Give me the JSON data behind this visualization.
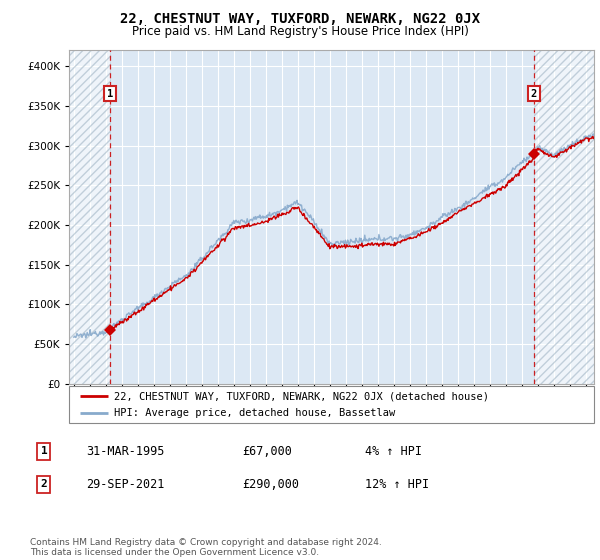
{
  "title": "22, CHESTNUT WAY, TUXFORD, NEWARK, NG22 0JX",
  "subtitle": "Price paid vs. HM Land Registry's House Price Index (HPI)",
  "legend_label1": "22, CHESTNUT WAY, TUXFORD, NEWARK, NG22 0JX (detached house)",
  "legend_label2": "HPI: Average price, detached house, Bassetlaw",
  "sale1_date": "31-MAR-1995",
  "sale1_price": "£67,000",
  "sale1_hpi": "4% ↑ HPI",
  "sale2_date": "29-SEP-2021",
  "sale2_price": "£290,000",
  "sale2_hpi": "12% ↑ HPI",
  "copyright": "Contains HM Land Registry data © Crown copyright and database right 2024.\nThis data is licensed under the Open Government Licence v3.0.",
  "color_sale": "#cc0000",
  "color_hpi": "#88aacc",
  "color_plot_bg": "#dce8f4",
  "ylim": [
    0,
    420000
  ],
  "yticks": [
    0,
    50000,
    100000,
    150000,
    200000,
    250000,
    300000,
    350000,
    400000
  ],
  "sale1_x": 1995.25,
  "sale1_y": 67000,
  "sale2_x": 2021.75,
  "sale2_y": 290000,
  "xmin": 1993.0,
  "xmax": 2025.5,
  "hatch_end": 1995.25,
  "hatch_start2": 2021.75
}
